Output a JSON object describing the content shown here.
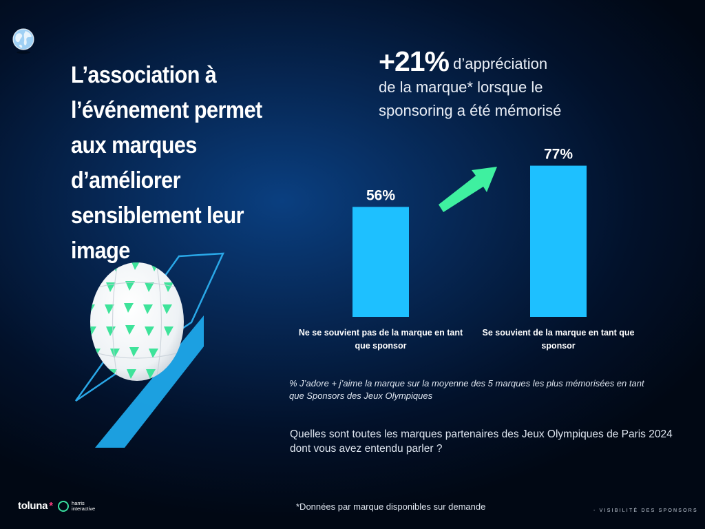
{
  "headline": "L’association à l’événement permet aux marques d’améliorer sensiblement leur image",
  "kpi": {
    "value": "+21%",
    "text_first": "d’appréciation",
    "text_rest": "de la marque* lorsque le sponsoring a été mémorisé"
  },
  "chart_data": {
    "type": "bar",
    "categories": [
      [
        "Ne se souvient pas de la marque en tant",
        "que sponsor"
      ],
      [
        "Se souvient de la marque en tant que",
        "sponsor"
      ]
    ],
    "values": [
      56,
      77
    ],
    "value_labels": [
      "56%",
      "77%"
    ],
    "ylim": [
      0,
      100
    ],
    "bar_color": "#1ec0ff",
    "arrow_color": "#3ff0a0"
  },
  "footnote_question": "% J’adore + j’aime la marque sur la moyenne des 5 marques les plus mémorisées en tant que Sponsors des Jeux Olympiques",
  "survey_question": "Quelles sont toutes les marques partenaires des Jeux Olympiques de Paris 2024 dont vous avez entendu parler ?",
  "source_note": "*Données par marque disponibles sur demande",
  "section_label": "- VISIBILITÉ DES SPONSORS",
  "logo": {
    "brand": "toluna",
    "star": "*",
    "partner_line1": "harris",
    "partner_line2": "interactive"
  },
  "colors": {
    "background": "#02112a",
    "accent_blue": "#1ec0ff",
    "accent_green": "#3ff0a0"
  }
}
